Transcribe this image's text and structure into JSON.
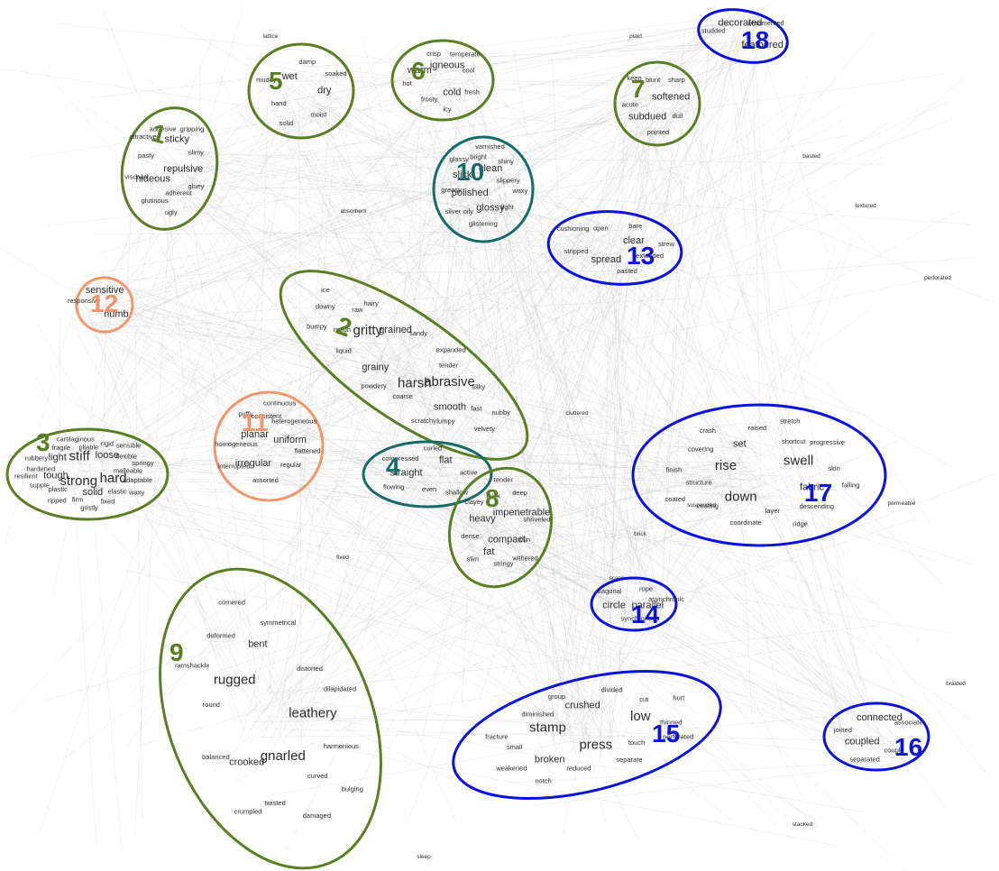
{
  "colors": {
    "green": "#5a7f22",
    "teal": "#156a6a",
    "orange": "#f2956a",
    "blue": "#0a10e0",
    "edge": "#c8c8c8",
    "word": "#2a2a2a",
    "small_word": "#555555"
  },
  "clusters": [
    {
      "id": "1",
      "label": "1",
      "color_key": "green",
      "words": [
        "repulsive",
        "hideous",
        "sticky",
        "adherent",
        "pasty",
        "slimy",
        "glutinous",
        "adhesive",
        "gluey",
        "viscous",
        "gripping",
        "ugly",
        "attractive"
      ]
    },
    {
      "id": "2",
      "label": "2",
      "color_key": "green",
      "words": [
        "harsh",
        "gritty",
        "abrasive",
        "grainy",
        "grained",
        "smooth",
        "rough",
        "tender",
        "coarse",
        "raw",
        "fast",
        "liquid",
        "sandy",
        "lumpy",
        "downy",
        "silky",
        "powdery",
        "hairy",
        "velvety",
        "bumpy",
        "expanded",
        "scratchy",
        "ice",
        "nubby"
      ]
    },
    {
      "id": "3",
      "label": "3",
      "color_key": "green",
      "words": [
        "strong",
        "stiff",
        "hard",
        "tough",
        "loose",
        "solid",
        "light",
        "malleable",
        "plastic",
        "pliable",
        "elastic",
        "hardened",
        "flexible",
        "firm",
        "fragile",
        "adaptable",
        "supple",
        "rigid",
        "fixed",
        "rubbery",
        "springy",
        "ripped",
        "cartilaginous",
        "waxy",
        "resilient",
        "sensible",
        "gristly"
      ]
    },
    {
      "id": "4",
      "label": "4",
      "color_key": "teal",
      "words": [
        "straight",
        "flat",
        "even",
        "compressed",
        "active",
        "flowing",
        "curled",
        "shallow"
      ]
    },
    {
      "id": "5",
      "label": "5",
      "color_key": "green",
      "words": [
        "wet",
        "dry",
        "hand",
        "damp",
        "moist",
        "muddy",
        "soaked",
        "solid"
      ]
    },
    {
      "id": "6",
      "label": "6",
      "color_key": "green",
      "words": [
        "igneous",
        "cold",
        "warm",
        "cool",
        "frosty",
        "crisp",
        "fresh",
        "hot",
        "temperate",
        "icy"
      ]
    },
    {
      "id": "7",
      "label": "7",
      "color_key": "green",
      "words": [
        "softened",
        "subdued",
        "blunt",
        "dull",
        "acute",
        "sharp",
        "pointed",
        "keen"
      ]
    },
    {
      "id": "8",
      "label": "8",
      "color_key": "green",
      "words": [
        "compact",
        "heavy",
        "impenetrable",
        "fat",
        "thick",
        "thin",
        "dense",
        "deep",
        "stringy",
        "clayey",
        "shriveled",
        "slim",
        "tender",
        "withered"
      ]
    },
    {
      "id": "9",
      "label": "9",
      "color_key": "green",
      "words": [
        "gnarled",
        "rugged",
        "leathery",
        "crooked",
        "bent",
        "curved",
        "round",
        "distorted",
        "twisted",
        "deformed",
        "harmonious",
        "balanced",
        "symmetrical",
        "damaged",
        "ramshackle",
        "dilapidated",
        "crumpled",
        "cornered",
        "bulging"
      ]
    },
    {
      "id": "10",
      "label": "10",
      "color_key": "teal",
      "words": [
        "polished",
        "clean",
        "glossy",
        "slick",
        "slippery",
        "oily",
        "bright",
        "light",
        "greasy",
        "shiny",
        "glistening",
        "glassy",
        "waxy",
        "silver",
        "varnished"
      ]
    },
    {
      "id": "11",
      "label": "11",
      "color_key": "orange",
      "words": [
        "planar",
        "uniform",
        "irregular",
        "consistent",
        "regular",
        "homogeneous",
        "heterogeneous",
        "assorted",
        "puffy",
        "flattened",
        "interrupted",
        "continuous"
      ]
    },
    {
      "id": "12",
      "label": "12",
      "color_key": "orange",
      "words": [
        "sensitive",
        "numb",
        "responsive"
      ]
    },
    {
      "id": "13",
      "label": "13",
      "color_key": "blue",
      "words": [
        "clear",
        "spread",
        "open",
        "extended",
        "stripped",
        "bare",
        "pasted",
        "cushioning",
        "strew"
      ]
    },
    {
      "id": "14",
      "label": "14",
      "color_key": "blue",
      "words": [
        "parallel",
        "circle",
        "rope",
        "synchronous",
        "diagonal",
        "asynchronic"
      ]
    },
    {
      "id": "15",
      "label": "15",
      "color_key": "blue",
      "words": [
        "press",
        "stamp",
        "low",
        "broken",
        "crushed",
        "touch",
        "small",
        "cut",
        "reduced",
        "diminished",
        "thinned",
        "weakened",
        "divided",
        "separate",
        "fracture",
        "hurt",
        "notch",
        "group",
        "perforated"
      ]
    },
    {
      "id": "16",
      "label": "16",
      "color_key": "blue",
      "words": [
        "coupled",
        "connected",
        "couple",
        "joined",
        "associate",
        "separated"
      ]
    },
    {
      "id": "17",
      "label": "17",
      "color_key": "blue",
      "words": [
        "rise",
        "swell",
        "down",
        "set",
        "fabric",
        "structure",
        "shortcut",
        "layer",
        "covering",
        "skin",
        "coating",
        "raised",
        "descending",
        "finish",
        "progressive",
        "coordinate",
        "crash",
        "falling",
        "coated",
        "stretch",
        "ridge"
      ]
    },
    {
      "id": "18",
      "label": "18",
      "color_key": "blue",
      "words": [
        "decorated",
        "feathered",
        "studded",
        "ornamented"
      ]
    }
  ],
  "loose_words": [
    "absorbent",
    "brick",
    "scape",
    "suspended",
    "permeable",
    "perforated",
    "basted",
    "lattice",
    "plaid",
    "textured",
    "braided",
    "stacked",
    "sleep",
    "fixed",
    "cluttered"
  ]
}
